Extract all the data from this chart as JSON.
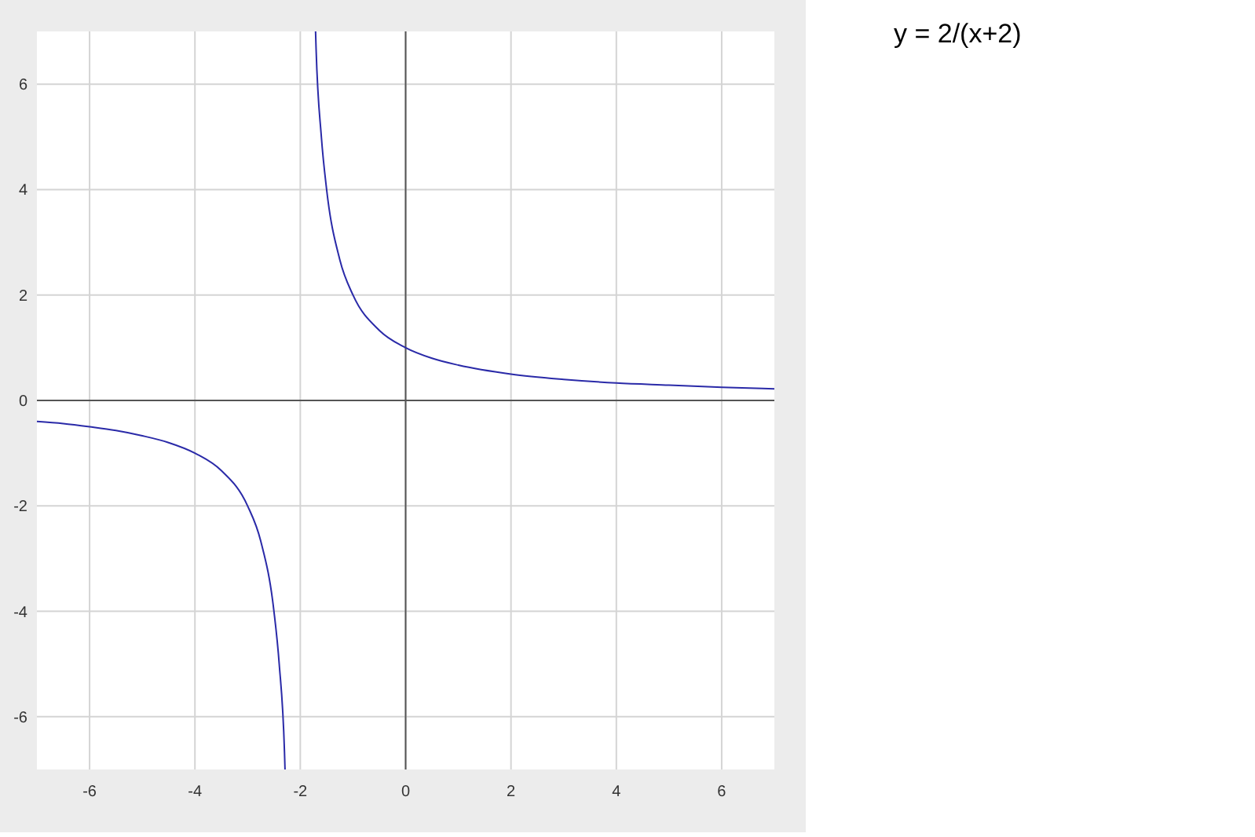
{
  "chart_data": {
    "type": "line",
    "title": "y = 2/(x+2)",
    "x": [
      -7,
      -6.5,
      -6,
      -5.5,
      -5,
      -4.5,
      -4,
      -3.5,
      -3,
      -2.75,
      -2.5,
      -2.4,
      -2.3,
      -2.29,
      -2,
      -1.71,
      -1.7,
      -1.6,
      -1.5,
      -1.25,
      -1,
      -0.5,
      0,
      0.5,
      1,
      2,
      3,
      4,
      5,
      6,
      7
    ],
    "series": [
      {
        "color": "#2a2aa8",
        "values": [
          -0.4,
          -0.44,
          -0.5,
          -0.57,
          -0.67,
          -0.8,
          -1,
          -1.33,
          -2,
          -2.67,
          -4,
          -5,
          -6.67,
          -7,
          null,
          7,
          6.67,
          5,
          4,
          2.67,
          2,
          1.33,
          1,
          0.8,
          0.67,
          0.5,
          0.4,
          0.33,
          0.29,
          0.25,
          0.22
        ]
      }
    ],
    "xlim": [
      -7,
      7
    ],
    "ylim": [
      -7,
      7
    ],
    "xticks": [
      -6,
      -4,
      -2,
      0,
      2,
      4,
      6
    ],
    "yticks": [
      -6,
      -4,
      -2,
      0,
      2,
      4,
      6
    ],
    "grid": true
  }
}
